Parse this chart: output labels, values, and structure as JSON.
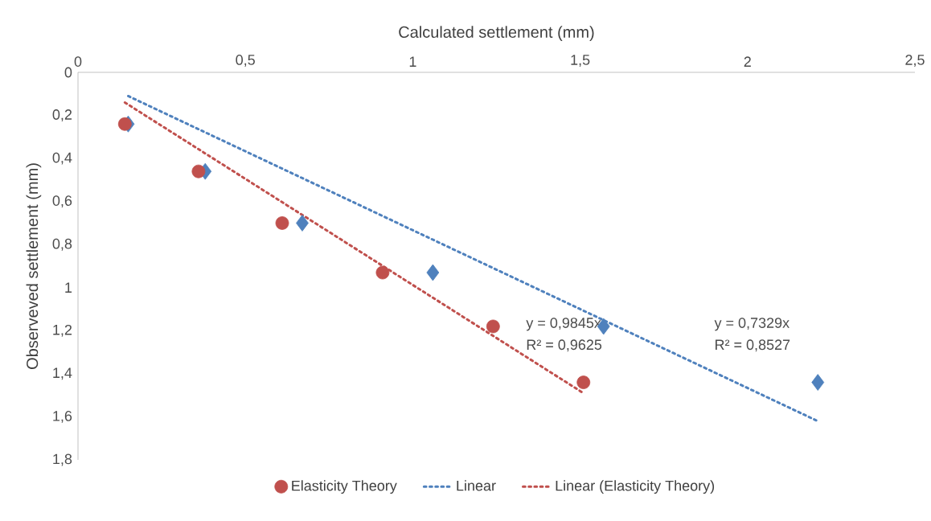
{
  "chart_data": {
    "type": "scatter",
    "xlabel": "Calculated settlement (mm)",
    "ylabel": "Observeved settlement (mm)",
    "xlim": [
      0,
      2.5
    ],
    "ylim": [
      1.8,
      0
    ],
    "xticks": [
      0,
      {
        "value": 0.5,
        "label": "0,5"
      },
      1,
      {
        "value": 1.5,
        "label": "1,5"
      },
      2,
      {
        "value": 2.5,
        "label": "2,5"
      }
    ],
    "yticks": [
      0,
      {
        "value": 0.2,
        "label": "0,2"
      },
      {
        "value": 0.4,
        "label": "0,4"
      },
      {
        "value": 0.6,
        "label": "0,6"
      },
      {
        "value": 0.8,
        "label": "0,8"
      },
      1,
      {
        "value": 1.2,
        "label": "1,2"
      },
      {
        "value": 1.4,
        "label": "1,4"
      },
      {
        "value": 1.6,
        "label": "1,6"
      },
      {
        "value": 1.8,
        "label": "1,8"
      }
    ],
    "legend": "bottom",
    "grid": false,
    "series": [
      {
        "color": "#4f81bd",
        "marker": "diamond",
        "x": [
          0.15,
          0.38,
          0.67,
          1.06,
          1.57,
          2.21
        ],
        "values": [
          0.24,
          0.46,
          0.7,
          0.93,
          1.18,
          1.44
        ]
      },
      {
        "name": "Elasticity Theory",
        "color": "#c0504d",
        "marker": "circle",
        "x": [
          0.14,
          0.36,
          0.61,
          0.91,
          1.24,
          1.51
        ],
        "values": [
          0.24,
          0.46,
          0.7,
          0.93,
          1.18,
          1.44
        ]
      },
      {
        "name": "Linear",
        "type": "line",
        "line_style": "dotted",
        "marker": "none",
        "color": "#4f81bd",
        "x": [
          0.15,
          2.21
        ],
        "values": [
          0.11,
          1.62
        ]
      },
      {
        "name": "Linear (Elasticity Theory)",
        "type": "line",
        "line_style": "dotted",
        "marker": "none",
        "color": "#c0504d",
        "x": [
          0.14,
          1.51
        ],
        "values": [
          0.14,
          1.49
        ]
      }
    ],
    "annotations": [
      "y = 0,9845x",
      "R² = 0,9625",
      "y = 0,7329x",
      "R² = 0,8527"
    ]
  }
}
